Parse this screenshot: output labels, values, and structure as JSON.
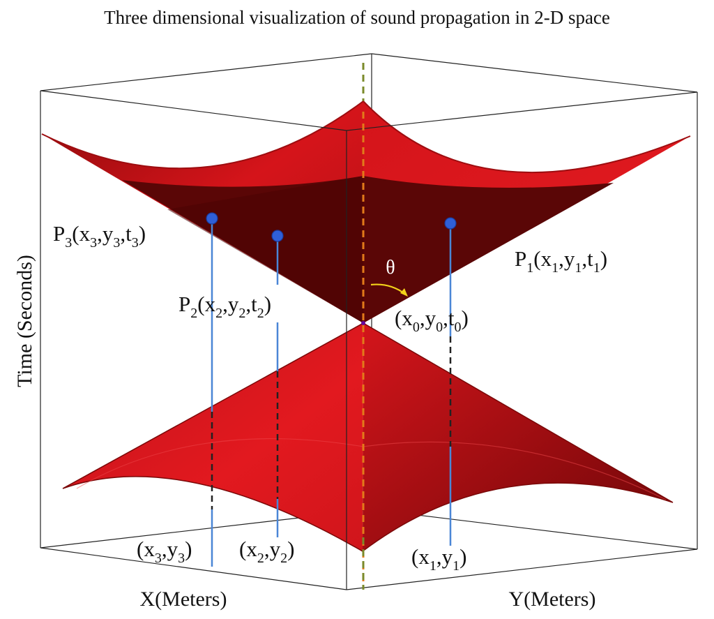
{
  "title": "Three dimensional visualization of sound propagation in 2-D space",
  "axes": {
    "time": "Time (Seconds)",
    "x": "X(Meters)",
    "y": "Y(Meters)"
  },
  "angle_label": "θ",
  "points": {
    "p1": {
      "name": "P",
      "idx": "1",
      "open": "(x",
      "c1": ",y",
      "c2": ",t",
      "close": ")"
    },
    "p2": {
      "name": "P",
      "idx": "2",
      "open": "(x",
      "c1": ",y",
      "c2": ",t",
      "close": ")"
    },
    "p3": {
      "name": "P",
      "idx": "3",
      "open": "(x",
      "c1": ",y",
      "c2": ",t",
      "close": ")"
    },
    "apex": {
      "open": "(x",
      "idx": "0",
      "c1": ",y",
      "c2": ",t",
      "close": ")"
    }
  },
  "ground_points": {
    "g1": {
      "open": "(x",
      "idx": "1",
      "c1": ",y",
      "close": ")"
    },
    "g2": {
      "open": "(x",
      "idx": "2",
      "c1": ",y",
      "close": ")"
    },
    "g3": {
      "open": "(x",
      "idx": "3",
      "c1": ",y",
      "close": ")"
    }
  },
  "colors": {
    "surface": "#e0181e",
    "surface_dark": "#5a0606",
    "marker": "#2f5fd8",
    "stem": "#4a86d6",
    "axis_dash": "#7a8a2a",
    "theta_arrow": "#f2d21a"
  }
}
